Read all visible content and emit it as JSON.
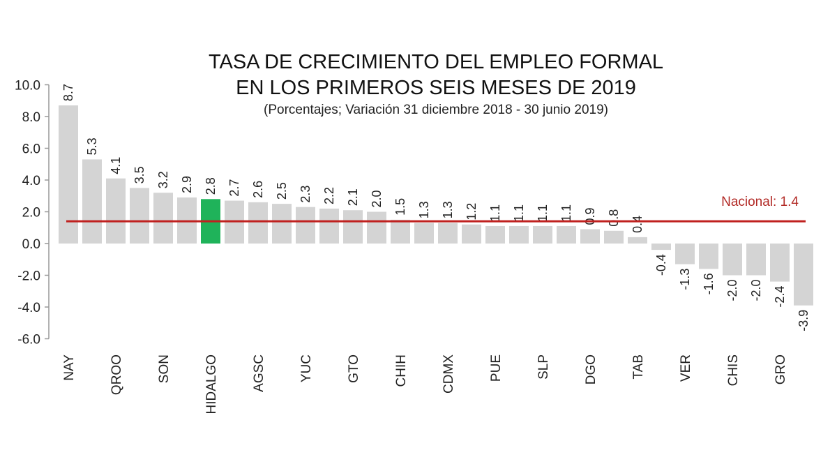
{
  "chart_data": {
    "type": "bar",
    "title_lines": [
      "TASA DE CRECIMIENTO DEL EMPLEO FORMAL",
      "EN LOS PRIMEROS SEIS MESES DE 2019"
    ],
    "subtitle": "(Porcentajes; Variación 31 diciembre 2018 - 30 junio 2019)",
    "xlabel": "",
    "ylabel": "",
    "ylim": [
      -6,
      10
    ],
    "yticks": [
      10,
      8,
      6,
      4,
      2,
      0,
      -2,
      -4,
      -6
    ],
    "ytick_labels": [
      "10.0",
      "8.0",
      "6.0",
      "4.0",
      "2.0",
      "0.0",
      "-2.0",
      "-4.0",
      "-6.0"
    ],
    "grid": false,
    "categories": [
      "NAY",
      "",
      "QROO",
      "",
      "SON",
      "",
      "HIDALGO",
      "",
      "AGSC",
      "",
      "YUC",
      "",
      "GTO",
      "",
      "CHIH",
      "",
      "CDMX",
      "",
      "PUE",
      "",
      "SLP",
      "",
      "DGO",
      "",
      "TAB",
      "",
      "VER",
      "",
      "CHIS",
      "",
      "GRO",
      ""
    ],
    "values": [
      8.7,
      5.3,
      4.1,
      3.5,
      3.2,
      2.9,
      2.8,
      2.7,
      2.6,
      2.5,
      2.3,
      2.2,
      2.1,
      2.0,
      1.5,
      1.3,
      1.3,
      1.2,
      1.1,
      1.1,
      1.1,
      1.1,
      0.9,
      0.8,
      0.4,
      -0.4,
      -1.3,
      -1.6,
      -2.0,
      -2.0,
      -2.4,
      -3.9
    ],
    "value_labels": [
      "8.7",
      "5.3",
      "4.1",
      "3.5",
      "3.2",
      "2.9",
      "2.8",
      "2.7",
      "2.6",
      "2.5",
      "2.3",
      "2.2",
      "2.1",
      "2.0",
      "1.5",
      "1.3",
      "1.3",
      "1.2",
      "1.1",
      "1.1",
      "1.1",
      "1.1",
      "0.9",
      "0.8",
      "0.4",
      "-0.4",
      "-1.3",
      "-1.6",
      "-2.0",
      "-2.0",
      "-2.4",
      "-3.9"
    ],
    "highlight_index": 6,
    "reference_line": {
      "label": "Nacional:  1.4",
      "value": 1.4
    },
    "colors": {
      "bar": "#d4d4d4",
      "highlight": "#1fb35a",
      "reference": "#c0211f",
      "reference_text": "#b22a26",
      "axis": "#999999"
    }
  }
}
